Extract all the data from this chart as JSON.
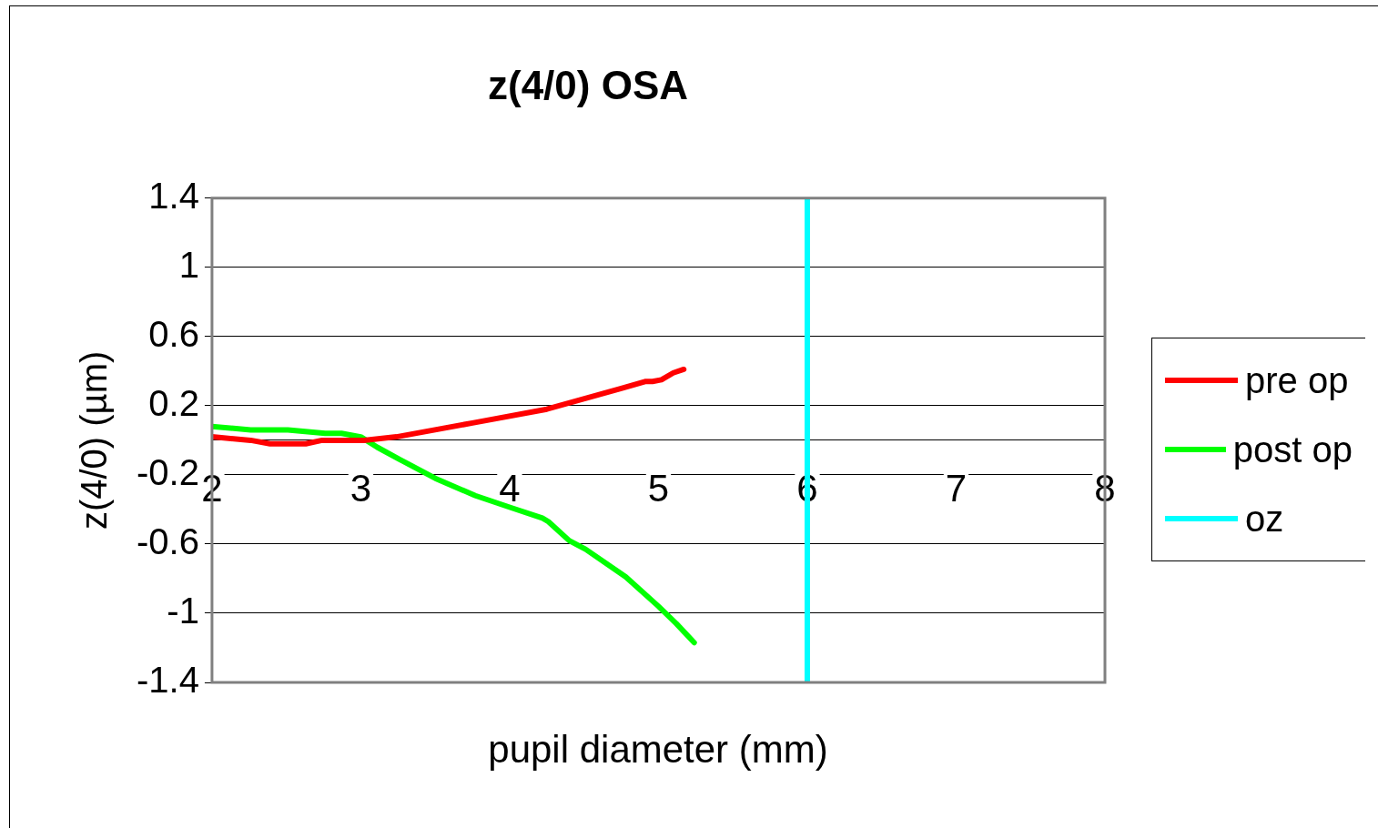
{
  "chart_data": {
    "type": "line",
    "title": "z(4/0) OSA",
    "xlabel": "pupil diameter (mm)",
    "ylabel": "z(4/0) (µm)",
    "xlim": [
      2,
      8
    ],
    "xticks": [
      2,
      3,
      4,
      5,
      6,
      7,
      8
    ],
    "ylim": [
      -1.4,
      1.4
    ],
    "yticks": [
      -1.4,
      -1,
      -0.6,
      -0.2,
      0.2,
      0.6,
      1,
      1.4
    ],
    "grid": "y",
    "legend": "right",
    "marker": "none",
    "line_style": "solid",
    "series": [
      {
        "name": "pre op",
        "color": "#ff0000",
        "x": [
          2,
          2.26,
          2.39,
          2.63,
          2.74,
          3.02,
          3.24,
          3.75,
          4.25,
          4.75,
          4.91,
          4.96,
          5.02,
          5.1,
          5.17
        ],
        "values": [
          0.02,
          0,
          -0.02,
          -0.02,
          0,
          0,
          0.02,
          0.1,
          0.18,
          0.3,
          0.34,
          0.34,
          0.35,
          0.39,
          0.41
        ]
      },
      {
        "name": "post op",
        "color": "#00ff00",
        "x": [
          2,
          2.26,
          2.51,
          2.76,
          2.87,
          3,
          3.11,
          3.26,
          3.5,
          3.77,
          4.01,
          4.22,
          4.26,
          4.4,
          4.51,
          4.78,
          5,
          5.12,
          5.24
        ],
        "values": [
          0.08,
          0.06,
          0.06,
          0.04,
          0.04,
          0.02,
          -0.04,
          -0.11,
          -0.22,
          -0.32,
          -0.39,
          -0.45,
          -0.47,
          -0.58,
          -0.63,
          -0.79,
          -0.96,
          -1.06,
          -1.17
        ]
      },
      {
        "name": "oz",
        "color": "#00ffff",
        "x": [
          6,
          6
        ],
        "values": [
          -1.4,
          1.4
        ]
      }
    ]
  }
}
